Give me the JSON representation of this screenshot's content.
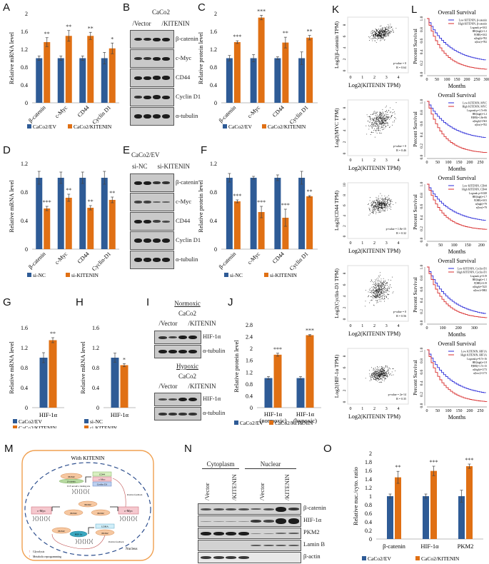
{
  "colors": {
    "control": "#2e5b96",
    "treated": "#e07014",
    "survival_low": "#2b2bd8",
    "survival_high": "#d82b2b"
  },
  "panel_labels": [
    "A",
    "B",
    "C",
    "D",
    "E",
    "F",
    "G",
    "H",
    "I",
    "J",
    "K",
    "L",
    "M",
    "N",
    "O"
  ],
  "chart_data": [
    {
      "id": "A",
      "type": "bar",
      "ylabel": "Relative mRNA level",
      "ylim": [
        0,
        2
      ],
      "yticks": [
        "0",
        "0.4",
        "0.8",
        "1.2",
        "1.6",
        "2"
      ],
      "categories": [
        "β-catenin",
        "c-Myc",
        "CD44",
        "Cyclin D1"
      ],
      "series": [
        {
          "name": "CaCo2/EV",
          "values": [
            1.0,
            1.0,
            1.0,
            1.0
          ],
          "errors": [
            0.05,
            0.05,
            0.05,
            0.13
          ]
        },
        {
          "name": "CaCo2/KITENIN",
          "values": [
            1.36,
            1.5,
            1.5,
            1.22
          ],
          "errors": [
            0.1,
            0.12,
            0.08,
            0.12
          ]
        }
      ],
      "significance": [
        "**",
        "**",
        "**",
        "*"
      ]
    },
    {
      "id": "C",
      "type": "bar",
      "ylabel": "Relative protein level",
      "ylim": [
        0,
        2
      ],
      "yticks": [
        "0",
        "0.4",
        "0.8",
        "1.2",
        "1.6",
        "2"
      ],
      "categories": [
        "β-catenin",
        "c-Myc",
        "CD44",
        "Cyclin D1"
      ],
      "series": [
        {
          "name": "CaCo2/EV",
          "values": [
            1.0,
            1.0,
            1.0,
            1.0
          ],
          "errors": [
            0.06,
            0.08,
            0.03,
            0.14
          ]
        },
        {
          "name": "CaCo2/KITENIN",
          "values": [
            1.36,
            1.91,
            1.35,
            1.46
          ],
          "errors": [
            0.03,
            0.05,
            0.12,
            0.05
          ]
        }
      ],
      "significance": [
        "***",
        "***",
        "**",
        "**"
      ]
    },
    {
      "id": "D",
      "type": "bar",
      "ylabel": "Relative mRNA level",
      "ylim": [
        0,
        1.2
      ],
      "yticks": [
        "0",
        "0.4",
        "0.8",
        "1.2"
      ],
      "categories": [
        "β-catenin",
        "c-Myc",
        "CD44",
        "Cyclin-D1"
      ],
      "series": [
        {
          "name": "si-NC",
          "values": [
            1.0,
            1.0,
            1.0,
            1.0
          ],
          "errors": [
            0.09,
            0.08,
            0.08,
            0.09
          ]
        },
        {
          "name": "si-KITENIN",
          "values": [
            0.57,
            0.72,
            0.58,
            0.69
          ],
          "errors": [
            0.03,
            0.05,
            0.03,
            0.04
          ]
        }
      ],
      "significance": [
        "***",
        "**",
        "**",
        "**"
      ]
    },
    {
      "id": "F",
      "type": "bar",
      "ylabel": "Relative protein level",
      "ylim": [
        0,
        1.2
      ],
      "yticks": [
        "0",
        "0.4",
        "0.8",
        "1.2"
      ],
      "categories": [
        "β-catenin",
        "c-Myc",
        "CD44",
        "Cyclin D1"
      ],
      "series": [
        {
          "name": "si-NC",
          "values": [
            1.0,
            1.0,
            1.0,
            1.0
          ],
          "errors": [
            0.06,
            0.02,
            0.04,
            0.09
          ]
        },
        {
          "name": "si-KITENIN",
          "values": [
            0.67,
            0.52,
            0.44,
            0.74
          ],
          "errors": [
            0.02,
            0.08,
            0.12,
            0.01
          ]
        }
      ],
      "significance": [
        "***",
        "***",
        "***",
        "**"
      ]
    },
    {
      "id": "G",
      "type": "bar",
      "ylabel": "Relative mRNA level",
      "ylim": [
        0,
        1.6
      ],
      "yticks": [
        "0",
        "0.4",
        "0.8",
        "1.2",
        "1.6"
      ],
      "categories": [
        "HIF-1α"
      ],
      "series": [
        {
          "name": "CaCo2/EV",
          "values": [
            1.0
          ],
          "errors": [
            0.1
          ]
        },
        {
          "name": "CaCo2/KITENIN",
          "values": [
            1.35
          ],
          "errors": [
            0.05
          ]
        }
      ],
      "significance": [
        "**"
      ]
    },
    {
      "id": "H",
      "type": "bar",
      "ylabel": "Relative mRNA level",
      "ylim": [
        0,
        1.6
      ],
      "yticks": [
        "0",
        "0.4",
        "0.8",
        "1.2",
        "1.6"
      ],
      "categories": [
        "HIF-1α"
      ],
      "series": [
        {
          "name": "si-NC",
          "values": [
            1.0
          ],
          "errors": [
            0.09
          ]
        },
        {
          "name": "si-KITENIN",
          "values": [
            0.85
          ],
          "errors": [
            0.03
          ]
        }
      ],
      "significance": [
        "*"
      ]
    },
    {
      "id": "J",
      "type": "bar",
      "ylabel": "Relative protein level",
      "ylim": [
        0,
        2.8
      ],
      "yticks": [
        "0",
        "0.4",
        "0.8",
        "1.2",
        "1.6",
        "2",
        "2.4",
        "2.8"
      ],
      "categories": [
        "HIF-1α (normoxic)",
        "HIF-1α (hypoxic)"
      ],
      "series": [
        {
          "name": "CaCo2/EV",
          "values": [
            1.0,
            1.0
          ],
          "errors": [
            0.05,
            0.05
          ]
        },
        {
          "name": "CaCo2/KITENIN",
          "values": [
            1.79,
            2.45
          ],
          "errors": [
            0.05,
            0.02
          ]
        }
      ],
      "significance": [
        "***",
        "***"
      ]
    },
    {
      "id": "O",
      "type": "bar",
      "ylabel": "Relative nuc./cyto. ratio",
      "ylim": [
        0,
        2
      ],
      "yticks": [
        "0",
        "0.2",
        "0.4",
        "0.6",
        "0.8",
        "1",
        "1.2",
        "1.4",
        "1.6",
        "1.8",
        "2"
      ],
      "categories": [
        "β-catenin",
        "HIF-1α",
        "PKM2"
      ],
      "series": [
        {
          "name": "CaCo2/EV",
          "values": [
            1.0,
            1.0,
            1.0
          ],
          "errors": [
            0.05,
            0.05,
            0.14
          ]
        },
        {
          "name": "CaCo2/KITENIN",
          "values": [
            1.44,
            1.59,
            1.7
          ],
          "errors": [
            0.14,
            0.11,
            0.05
          ]
        }
      ],
      "significance": [
        "**",
        "***",
        "***"
      ]
    }
  ],
  "scatter_panels": [
    {
      "ylabel": "Log2(β-catenin TPM)",
      "xlabel": "Log2(KITENIN TPM)",
      "pvalue": "p-value = 0",
      "r": "R = 0.64",
      "yticks": [
        "0",
        "2",
        "4",
        "6",
        "8"
      ],
      "center": [
        2.6,
        6.6
      ],
      "spread": [
        0.6,
        0.7
      ]
    },
    {
      "ylabel": "Log2(MYC TPM)",
      "xlabel": "Log2(KITENIN TPM)",
      "pvalue": "p-value = 0",
      "r": "R = 0.46",
      "yticks": [
        "0",
        "2",
        "4",
        "6",
        "8"
      ],
      "center": [
        2.5,
        5.8
      ],
      "spread": [
        0.7,
        1.3
      ]
    },
    {
      "ylabel": "Log2(CD44 TPM)",
      "xlabel": "Log2(KITENIN TPM)",
      "pvalue": "p-value = 1.8e-15",
      "r": "R = 0.32",
      "yticks": [
        "0",
        "2",
        "4",
        "6",
        "8",
        "10"
      ],
      "center": [
        2.5,
        6.2
      ],
      "spread": [
        0.6,
        1.0
      ]
    },
    {
      "ylabel": "Log2(Cyclin-D1 TPM)",
      "xlabel": "Log2(KITENIN TPM)",
      "pvalue": "p-value = 0",
      "r": "R = 0.56",
      "yticks": [
        "0",
        "2",
        "4",
        "6",
        "8"
      ],
      "center": [
        2.4,
        5.0
      ],
      "spread": [
        0.6,
        1.4
      ]
    },
    {
      "ylabel": "Log2(HIF-1α TPM)",
      "xlabel": "Log2(KITENIN TPM)",
      "pvalue": "p-value = 2e-14",
      "r": "R = 0.35",
      "yticks": [
        "0",
        "2",
        "4",
        "6",
        "8"
      ],
      "center": [
        2.5,
        4.9
      ],
      "spread": [
        0.6,
        0.8
      ]
    }
  ],
  "scatter_xticks": [
    "0",
    "1",
    "2",
    "3",
    "4"
  ],
  "survival_panels": [
    {
      "title": "Overall Survival",
      "legend_low": "Low KITENIN, β-catenin",
      "legend_high": "High KITENIN, β-catenin",
      "stats": [
        "Logrank p=0.02",
        "HR(high)=1.2",
        "P(HR)=0.02",
        "n(high)=782",
        "n(low)=782"
      ],
      "xticks": [
        "0",
        "50",
        "100",
        "150",
        "200",
        "250",
        "300"
      ],
      "xmax": 300,
      "low_end": 0.2,
      "high_end": 0.07
    },
    {
      "title": "Overall Survival",
      "legend_low": "Low KITENIN, MYC",
      "legend_high": "High KITENIN, MYC",
      "stats": [
        "Logrank p=1.7e-06",
        "HR(high)=1.2",
        "P(HR)=1.8e-06",
        "n(high)=1563",
        "n(low)=782"
      ],
      "xticks": [
        "0",
        "50",
        "100",
        "150",
        "200",
        "250"
      ],
      "xmax": 280,
      "low_end": 0.3,
      "high_end": 0.06
    },
    {
      "title": "Overall Survival",
      "legend_low": "Low KITENIN, CD44",
      "legend_high": "High KITENIN, CD44",
      "stats": [
        "Logrank p=0.028",
        "HR(high)=1.7",
        "P(HR)=0.03",
        "n(high)=79",
        "n(low)=79"
      ],
      "xticks": [
        "0",
        "50",
        "100",
        "150",
        "200"
      ],
      "xmax": 220,
      "low_end": 0.3,
      "high_end": 0.17
    },
    {
      "title": "Overall Survival",
      "legend_low": "Low KITENIN, Cyclin-D1",
      "legend_high": "High KITENIN, Cyclin-D1",
      "stats": [
        "Logrank p=0.19",
        "HR(high)=1.1",
        "P(HR)=0.19",
        "n(high)=7425",
        "n(low)=5882"
      ],
      "xticks": [
        "0",
        "100",
        "200",
        "300"
      ],
      "xmax": 380,
      "low_end": 0.1,
      "high_end": 0.07
    },
    {
      "title": "Overall Survival",
      "legend_low": "Low KITENIN, HIF1A",
      "legend_high": "High KITENIN, HIF1A",
      "stats": [
        "Logrank p=8.7e-16",
        "HR(high)=1.8",
        "P(HR)=1.7e-15",
        "n(high)=1173",
        "n(low)=1173"
      ],
      "xticks": [
        "0",
        "50",
        "100",
        "150",
        "200",
        "250"
      ],
      "xmax": 280,
      "low_end": 0.17,
      "high_end": 0.05
    }
  ],
  "survival_ylabel": "Percent Survival",
  "survival_xlabel": "Months",
  "survival_yticks": [
    "0.0",
    "0.2",
    "0.4",
    "0.6",
    "0.8",
    "1.0"
  ],
  "blots": {
    "B": {
      "title": "CaCo2",
      "groups": [
        "/Vector",
        "/KITENIN"
      ],
      "rows": [
        "β-catenin",
        "c-Myc",
        "CD44",
        "Cyclin D1",
        "α-tubulin"
      ]
    },
    "E": {
      "title": "CaCo2/EV",
      "groups": [
        "si-NC",
        "si-KITENIN"
      ],
      "rows": [
        "β-catenin",
        "c-Myc",
        "CD44",
        "Cyclin D1",
        "α-tubulin"
      ]
    },
    "I_normoxic": {
      "condition": "Normoxic",
      "title": "CaCo2",
      "groups": [
        "/Vector",
        "/KITENIN"
      ],
      "rows": [
        "HIF-1α",
        "α-tubulin"
      ]
    },
    "I_hypoxic": {
      "condition": "Hypoxic",
      "title": "CaCo2",
      "groups": [
        "/Vector",
        "/KITENIN"
      ],
      "rows": [
        "HIF-1α",
        "α-tubulin"
      ]
    },
    "N": {
      "fractions": [
        "Cytoplasm",
        "Nuclear"
      ],
      "lanes": [
        "/Vector",
        "/KITENIN",
        "/Vector",
        "/KITENIN"
      ],
      "rows": [
        "β-catenin",
        "HIF-1α",
        "PKM2",
        "Lamin B",
        "β-actin"
      ]
    }
  },
  "diagram_M": {
    "title": "With KITENIN",
    "nucleus": "Nucleus",
    "pkm2": "PKM2",
    "beta_catenin": "β-catenin",
    "binding_site": "TCF and AP-1 binding site",
    "targets": [
      "CD44",
      "c-Myc",
      "Cyclin D1"
    ],
    "cmyc": "c-Myc",
    "hif": "HIF-1α",
    "ldha": "LDHA",
    "feedback": "Positive feedback",
    "legend": [
      "Glycolysis",
      "Metabolic reprogramming"
    ]
  }
}
